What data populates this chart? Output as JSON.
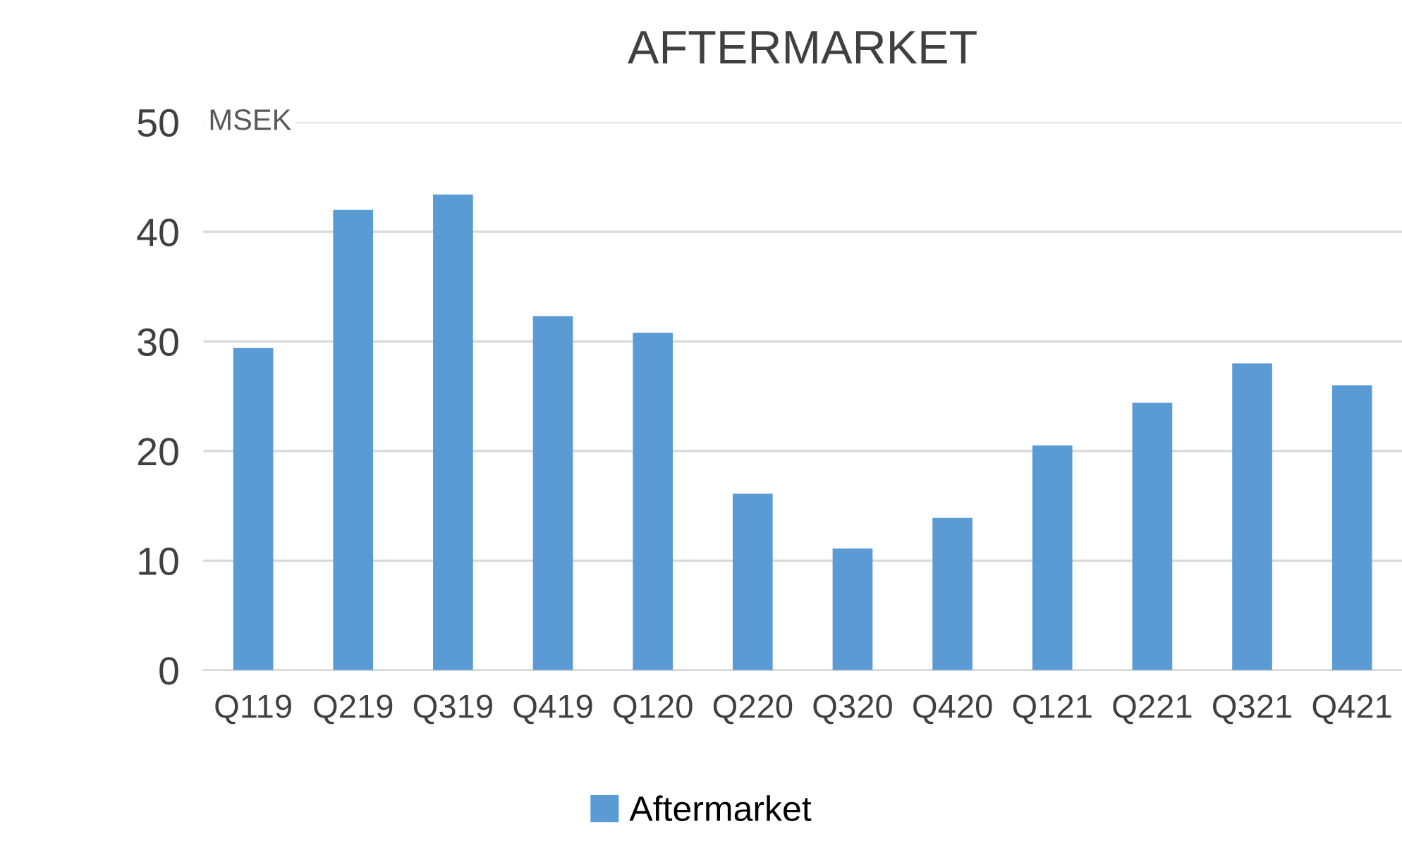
{
  "chart_data": {
    "type": "bar",
    "title": "AFTERMARKET",
    "ylabel": "MSEK",
    "categories": [
      "Q119",
      "Q219",
      "Q319",
      "Q419",
      "Q120",
      "Q220",
      "Q320",
      "Q420",
      "Q121",
      "Q221",
      "Q321",
      "Q421"
    ],
    "series": [
      {
        "name": "Aftermarket",
        "color": "#5b9bd5",
        "values": [
          29.4,
          42.0,
          43.4,
          32.3,
          30.8,
          16.1,
          11.1,
          13.9,
          20.5,
          24.4,
          28.0,
          26.0
        ]
      }
    ],
    "ylim": [
      0,
      50
    ],
    "yticks": [
      0,
      10,
      20,
      30,
      40,
      50
    ],
    "grid": "y",
    "legend": "bottom"
  }
}
